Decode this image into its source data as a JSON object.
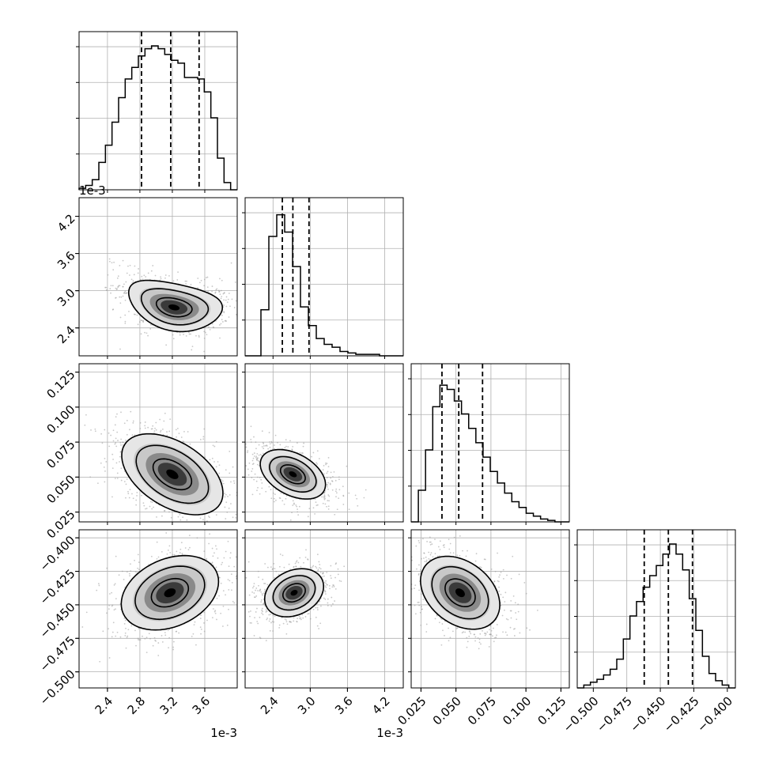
{
  "chart_data": {
    "type": "corner",
    "description_free": true,
    "parameters": [
      {
        "offset_label": "1e-3",
        "ticks": [
          2.4,
          2.8,
          3.2,
          3.6
        ],
        "tick_labels": [
          "2.4",
          "2.8",
          "3.2",
          "3.6"
        ],
        "range": [
          2.05,
          4.0
        ],
        "quantiles": [
          2.82,
          3.18,
          3.53
        ]
      },
      {
        "offset_label": "1e-3",
        "ticks": [
          2.4,
          3.0,
          3.6,
          4.2
        ],
        "tick_labels": [
          "2.4",
          "3.0",
          "3.6",
          "4.2"
        ],
        "range": [
          1.95,
          4.5
        ],
        "quantiles": [
          2.55,
          2.72,
          2.98
        ]
      },
      {
        "offset_label": "",
        "ticks": [
          0.025,
          0.05,
          0.075,
          0.1,
          0.125
        ],
        "tick_labels": [
          "0.025",
          "0.050",
          "0.075",
          "0.100",
          "0.125"
        ],
        "range": [
          0.018,
          0.131
        ],
        "quantiles": [
          0.04,
          0.052,
          0.069
        ]
      },
      {
        "offset_label": "",
        "ticks": [
          -0.5,
          -0.475,
          -0.45,
          -0.425,
          -0.4
        ],
        "tick_labels": [
          "−0.500",
          "−0.475",
          "−0.450",
          "−0.425",
          "−0.400"
        ],
        "range": [
          -0.512,
          -0.394
        ],
        "quantiles": [
          -0.462,
          -0.444,
          -0.426
        ]
      }
    ],
    "histograms": [
      [
        0.01,
        0.03,
        0.07,
        0.19,
        0.31,
        0.47,
        0.64,
        0.77,
        0.85,
        0.93,
        0.98,
        1.0,
        0.98,
        0.94,
        0.9,
        0.88,
        0.78,
        0.78,
        0.77,
        0.68,
        0.5,
        0.22,
        0.05,
        0.0
      ],
      [
        0.0,
        0.0,
        0.32,
        0.83,
        0.98,
        0.86,
        0.62,
        0.34,
        0.21,
        0.12,
        0.08,
        0.06,
        0.03,
        0.02,
        0.01,
        0.01,
        0.01,
        0.0,
        0.0,
        0.0
      ],
      [
        0.0,
        0.22,
        0.5,
        0.8,
        0.95,
        0.92,
        0.84,
        0.75,
        0.65,
        0.55,
        0.45,
        0.35,
        0.27,
        0.2,
        0.14,
        0.1,
        0.06,
        0.04,
        0.02,
        0.01,
        0.0,
        0.0
      ],
      [
        0.0,
        0.02,
        0.04,
        0.06,
        0.09,
        0.13,
        0.2,
        0.34,
        0.5,
        0.6,
        0.7,
        0.78,
        0.85,
        0.93,
        1.0,
        0.93,
        0.82,
        0.62,
        0.4,
        0.22,
        0.1,
        0.05,
        0.02,
        0.0
      ]
    ],
    "pairs": [
      {
        "x": 0,
        "y": 1,
        "center": [
          3.22,
          2.73
        ],
        "sx": 0.28,
        "sy": 0.18,
        "angle_deg": -12,
        "bend": 0.6
      },
      {
        "x": 0,
        "y": 2,
        "center": [
          3.2,
          0.052
        ],
        "sx": 0.33,
        "sy": 0.011,
        "angle_deg": -32,
        "bend": 0.0
      },
      {
        "x": 0,
        "y": 3,
        "center": [
          3.17,
          -0.441
        ],
        "sx": 0.3,
        "sy": 0.012,
        "angle_deg": 24,
        "bend": 0.0
      },
      {
        "x": 1,
        "y": 2,
        "center": [
          2.72,
          0.052
        ],
        "sx": 0.16,
        "sy": 0.012,
        "angle_deg": 62,
        "bend": 0.0
      },
      {
        "x": 1,
        "y": 3,
        "center": [
          2.74,
          -0.441
        ],
        "sx": 0.17,
        "sy": 0.011,
        "angle_deg": -64,
        "bend": 0.0
      },
      {
        "x": 2,
        "y": 3,
        "center": [
          0.053,
          -0.441
        ],
        "sx": 0.015,
        "sy": 0.011,
        "angle_deg": -38,
        "bend": 0.0
      }
    ],
    "grid": true
  }
}
